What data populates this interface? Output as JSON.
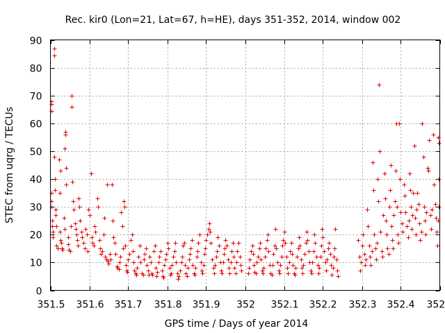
{
  "chart_data": {
    "type": "scatter",
    "title": "Rec. kir0 (Lon=21, Lat=67, h=HE), days 351-352, 2014, window 002",
    "xlabel": "GPS time / Days of year 2014",
    "ylabel": "STEC from uqrg / TECUs",
    "xlim": [
      351.5,
      352.5
    ],
    "ylim": [
      0,
      90
    ],
    "grid": true,
    "x_ticks": [
      "351.5",
      "351.6",
      "351.7",
      "351.8",
      "351.9",
      "352",
      "352.1",
      "352.2",
      "352.3",
      "352.4",
      "352.5"
    ],
    "y_ticks": [
      "0",
      "10",
      "20",
      "30",
      "40",
      "50",
      "60",
      "70",
      "80",
      "90"
    ],
    "marker": "plus",
    "color": "#e00000",
    "points": [
      [
        351.502,
        68
      ],
      [
        351.502,
        67
      ],
      [
        351.503,
        64.5
      ],
      [
        351.503,
        35
      ],
      [
        351.502,
        32
      ],
      [
        351.502,
        30
      ],
      [
        351.504,
        25
      ],
      [
        351.505,
        23
      ],
      [
        351.506,
        21
      ],
      [
        351.506,
        19
      ],
      [
        351.51,
        87
      ],
      [
        351.51,
        84.5
      ],
      [
        351.51,
        48
      ],
      [
        351.512,
        40
      ],
      [
        351.512,
        36
      ],
      [
        351.513,
        29
      ],
      [
        351.514,
        27
      ],
      [
        351.516,
        23
      ],
      [
        351.516,
        16
      ],
      [
        351.518,
        15
      ],
      [
        351.522,
        47
      ],
      [
        351.526,
        43
      ],
      [
        351.525,
        35
      ],
      [
        351.524,
        21
      ],
      [
        351.526,
        18
      ],
      [
        351.528,
        17
      ],
      [
        351.53,
        15
      ],
      [
        351.531,
        14.5
      ],
      [
        351.534,
        26
      ],
      [
        351.536,
        22
      ],
      [
        351.538,
        57
      ],
      [
        351.538,
        56
      ],
      [
        351.536,
        51
      ],
      [
        351.54,
        44
      ],
      [
        351.541,
        38
      ],
      [
        351.545,
        19
      ],
      [
        351.546,
        16.5
      ],
      [
        351.548,
        14.5
      ],
      [
        351.55,
        14
      ],
      [
        351.552,
        23
      ],
      [
        351.555,
        70
      ],
      [
        351.555,
        66
      ],
      [
        351.556,
        39
      ],
      [
        351.558,
        32
      ],
      [
        351.56,
        29
      ],
      [
        351.563,
        24
      ],
      [
        351.565,
        22
      ],
      [
        351.567,
        20
      ],
      [
        351.568,
        18
      ],
      [
        351.57,
        16
      ],
      [
        351.572,
        33
      ],
      [
        351.574,
        30
      ],
      [
        351.576,
        25
      ],
      [
        351.579,
        21
      ],
      [
        351.582,
        19
      ],
      [
        351.585,
        17
      ],
      [
        351.588,
        15
      ],
      [
        351.59,
        22
      ],
      [
        351.593,
        20
      ],
      [
        351.596,
        14
      ],
      [
        351.598,
        29
      ],
      [
        351.6,
        27
      ],
      [
        351.604,
        42
      ],
      [
        351.606,
        19
      ],
      [
        351.608,
        17
      ],
      [
        351.612,
        16
      ],
      [
        351.614,
        23
      ],
      [
        351.616,
        21
      ],
      [
        351.62,
        33
      ],
      [
        351.623,
        30
      ],
      [
        351.625,
        18
      ],
      [
        351.627,
        15
      ],
      [
        351.63,
        13
      ],
      [
        351.633,
        14
      ],
      [
        351.636,
        20
      ],
      [
        351.638,
        26
      ],
      [
        351.64,
        12
      ],
      [
        351.643,
        11
      ],
      [
        351.645,
        38
      ],
      [
        351.648,
        10.5
      ],
      [
        351.65,
        9.5
      ],
      [
        351.653,
        13
      ],
      [
        351.655,
        11
      ],
      [
        351.658,
        38
      ],
      [
        351.66,
        25
      ],
      [
        351.662,
        19
      ],
      [
        351.665,
        17
      ],
      [
        351.667,
        13
      ],
      [
        351.67,
        8.5
      ],
      [
        351.672,
        8
      ],
      [
        351.675,
        7.5
      ],
      [
        351.677,
        10
      ],
      [
        351.68,
        12
      ],
      [
        351.682,
        28
      ],
      [
        351.684,
        23
      ],
      [
        351.686,
        15
      ],
      [
        351.688,
        32
      ],
      [
        351.69,
        30
      ],
      [
        351.692,
        16
      ],
      [
        351.694,
        9
      ],
      [
        351.696,
        7
      ],
      [
        351.698,
        6.5
      ],
      [
        351.7,
        11
      ],
      [
        351.703,
        13
      ],
      [
        351.706,
        18
      ],
      [
        351.709,
        20
      ],
      [
        351.712,
        14
      ],
      [
        351.714,
        10
      ],
      [
        351.716,
        7
      ],
      [
        351.718,
        6
      ],
      [
        351.72,
        5.5
      ],
      [
        351.723,
        8
      ],
      [
        351.726,
        12
      ],
      [
        351.729,
        16
      ],
      [
        351.732,
        10
      ],
      [
        351.735,
        6
      ],
      [
        351.738,
        5.5
      ],
      [
        351.74,
        11
      ],
      [
        351.742,
        13
      ],
      [
        351.745,
        15
      ],
      [
        351.748,
        9
      ],
      [
        351.75,
        7
      ],
      [
        351.752,
        5.5
      ],
      [
        351.755,
        12
      ],
      [
        351.758,
        10
      ],
      [
        351.76,
        6
      ],
      [
        351.762,
        5.5
      ],
      [
        351.765,
        14
      ],
      [
        351.768,
        16
      ],
      [
        351.77,
        8
      ],
      [
        351.772,
        5
      ],
      [
        351.775,
        6.5
      ],
      [
        351.778,
        10
      ],
      [
        351.78,
        12
      ],
      [
        351.783,
        14
      ],
      [
        351.786,
        7
      ],
      [
        351.788,
        5
      ],
      [
        351.79,
        4.5
      ],
      [
        351.792,
        9
      ],
      [
        351.795,
        11
      ],
      [
        351.798,
        13
      ],
      [
        351.8,
        17
      ],
      [
        351.803,
        15
      ],
      [
        351.806,
        8
      ],
      [
        351.808,
        5.5
      ],
      [
        351.81,
        6
      ],
      [
        351.812,
        9
      ],
      [
        351.815,
        12
      ],
      [
        351.818,
        14
      ],
      [
        351.82,
        17
      ],
      [
        351.823,
        10
      ],
      [
        351.826,
        6
      ],
      [
        351.828,
        4
      ],
      [
        351.83,
        5
      ],
      [
        351.833,
        7
      ],
      [
        351.836,
        10
      ],
      [
        351.838,
        12
      ],
      [
        351.84,
        16
      ],
      [
        351.843,
        17
      ],
      [
        351.846,
        9
      ],
      [
        351.848,
        6
      ],
      [
        351.85,
        5
      ],
      [
        351.853,
        8
      ],
      [
        351.856,
        11
      ],
      [
        351.858,
        13
      ],
      [
        351.86,
        15
      ],
      [
        351.863,
        18
      ],
      [
        351.866,
        9
      ],
      [
        351.868,
        6
      ],
      [
        351.87,
        5.5
      ],
      [
        351.873,
        8
      ],
      [
        351.876,
        12
      ],
      [
        351.878,
        14
      ],
      [
        351.88,
        17
      ],
      [
        351.883,
        20
      ],
      [
        351.886,
        10
      ],
      [
        351.888,
        7
      ],
      [
        351.89,
        6
      ],
      [
        351.893,
        9
      ],
      [
        351.896,
        13
      ],
      [
        351.898,
        15
      ],
      [
        351.9,
        18
      ],
      [
        351.903,
        20
      ],
      [
        351.906,
        22
      ],
      [
        351.908,
        24
      ],
      [
        351.91,
        21
      ],
      [
        351.912,
        17
      ],
      [
        351.915,
        11
      ],
      [
        351.918,
        8
      ],
      [
        351.92,
        6
      ],
      [
        351.923,
        9
      ],
      [
        351.926,
        12
      ],
      [
        351.928,
        14
      ],
      [
        351.93,
        19
      ],
      [
        351.933,
        16
      ],
      [
        351.936,
        10
      ],
      [
        351.938,
        7
      ],
      [
        351.94,
        6
      ],
      [
        351.943,
        10
      ],
      [
        351.946,
        13
      ],
      [
        351.948,
        15
      ],
      [
        351.95,
        18
      ],
      [
        351.953,
        16
      ],
      [
        351.956,
        11
      ],
      [
        351.958,
        8
      ],
      [
        351.96,
        6
      ],
      [
        351.963,
        10
      ],
      [
        351.966,
        14
      ],
      [
        351.968,
        17
      ],
      [
        351.97,
        12
      ],
      [
        351.973,
        8
      ],
      [
        351.976,
        6
      ],
      [
        351.978,
        10
      ],
      [
        351.98,
        14
      ],
      [
        351.983,
        17
      ],
      [
        351.986,
        12
      ],
      [
        351.988,
        9
      ],
      [
        351.99,
        7
      ],
      [
        352.008,
        6
      ],
      [
        352.01,
        8
      ],
      [
        352.012,
        11
      ],
      [
        352.015,
        14
      ],
      [
        352.018,
        16
      ],
      [
        352.02,
        13
      ],
      [
        352.022,
        9
      ],
      [
        352.025,
        6.5
      ],
      [
        352.028,
        6
      ],
      [
        352.03,
        10
      ],
      [
        352.033,
        12
      ],
      [
        352.036,
        15
      ],
      [
        352.038,
        17
      ],
      [
        352.04,
        11
      ],
      [
        352.043,
        7
      ],
      [
        352.046,
        6
      ],
      [
        352.048,
        8
      ],
      [
        352.05,
        12
      ],
      [
        352.053,
        15
      ],
      [
        352.056,
        18
      ],
      [
        352.058,
        20
      ],
      [
        352.06,
        14
      ],
      [
        352.063,
        9
      ],
      [
        352.066,
        6
      ],
      [
        352.068,
        5.5
      ],
      [
        352.07,
        9
      ],
      [
        352.073,
        13
      ],
      [
        352.076,
        16
      ],
      [
        352.078,
        22
      ],
      [
        352.08,
        15
      ],
      [
        352.083,
        10
      ],
      [
        352.086,
        7
      ],
      [
        352.088,
        6
      ],
      [
        352.09,
        9
      ],
      [
        352.093,
        12
      ],
      [
        352.096,
        16
      ],
      [
        352.098,
        18
      ],
      [
        352.1,
        21
      ],
      [
        352.103,
        17
      ],
      [
        352.106,
        12
      ],
      [
        352.108,
        8
      ],
      [
        352.11,
        6
      ],
      [
        352.113,
        10
      ],
      [
        352.116,
        14
      ],
      [
        352.118,
        17
      ],
      [
        352.12,
        13
      ],
      [
        352.123,
        9
      ],
      [
        352.126,
        6
      ],
      [
        352.128,
        5.5
      ],
      [
        352.13,
        8
      ],
      [
        352.133,
        12
      ],
      [
        352.136,
        15
      ],
      [
        352.138,
        19
      ],
      [
        352.14,
        16
      ],
      [
        352.143,
        11
      ],
      [
        352.146,
        8
      ],
      [
        352.148,
        6
      ],
      [
        352.15,
        9
      ],
      [
        352.153,
        13
      ],
      [
        352.156,
        17
      ],
      [
        352.158,
        21
      ],
      [
        352.16,
        18
      ],
      [
        352.163,
        14
      ],
      [
        352.166,
        10
      ],
      [
        352.168,
        7
      ],
      [
        352.17,
        6
      ],
      [
        352.173,
        10
      ],
      [
        352.176,
        14
      ],
      [
        352.178,
        20
      ],
      [
        352.18,
        17
      ],
      [
        352.183,
        12
      ],
      [
        352.186,
        9
      ],
      [
        352.188,
        6
      ],
      [
        352.19,
        8
      ],
      [
        352.193,
        12
      ],
      [
        352.196,
        16
      ],
      [
        352.198,
        22
      ],
      [
        352.2,
        19
      ],
      [
        352.203,
        14
      ],
      [
        352.206,
        10
      ],
      [
        352.208,
        7
      ],
      [
        352.21,
        11
      ],
      [
        352.213,
        15
      ],
      [
        352.216,
        17
      ],
      [
        352.218,
        13
      ],
      [
        352.22,
        9
      ],
      [
        352.222,
        5.5
      ],
      [
        352.225,
        8
      ],
      [
        352.228,
        12
      ],
      [
        352.23,
        15
      ],
      [
        352.232,
        22
      ],
      [
        352.234,
        11
      ],
      [
        352.236,
        7
      ],
      [
        352.238,
        5
      ],
      [
        352.29,
        18
      ],
      [
        352.293,
        12
      ],
      [
        352.296,
        7
      ],
      [
        352.298,
        10
      ],
      [
        352.3,
        16
      ],
      [
        352.303,
        20
      ],
      [
        352.306,
        13
      ],
      [
        352.308,
        9
      ],
      [
        352.31,
        11
      ],
      [
        352.313,
        29
      ],
      [
        352.316,
        23
      ],
      [
        352.318,
        16
      ],
      [
        352.32,
        12
      ],
      [
        352.323,
        9
      ],
      [
        352.326,
        14
      ],
      [
        352.328,
        46
      ],
      [
        352.33,
        36
      ],
      [
        352.332,
        20
      ],
      [
        352.334,
        15
      ],
      [
        352.336,
        11
      ],
      [
        352.338,
        17
      ],
      [
        352.34,
        40
      ],
      [
        352.342,
        32
      ],
      [
        352.344,
        74
      ],
      [
        352.346,
        50
      ],
      [
        352.348,
        21
      ],
      [
        352.35,
        14
      ],
      [
        352.352,
        12
      ],
      [
        352.355,
        27
      ],
      [
        352.358,
        42
      ],
      [
        352.36,
        33
      ],
      [
        352.362,
        25
      ],
      [
        352.364,
        20
      ],
      [
        352.366,
        15
      ],
      [
        352.368,
        13
      ],
      [
        352.37,
        30
      ],
      [
        352.372,
        36
      ],
      [
        352.374,
        45
      ],
      [
        352.376,
        23
      ],
      [
        352.378,
        18
      ],
      [
        352.38,
        15
      ],
      [
        352.382,
        27
      ],
      [
        352.384,
        32
      ],
      [
        352.386,
        43
      ],
      [
        352.388,
        60
      ],
      [
        352.39,
        30
      ],
      [
        352.392,
        20
      ],
      [
        352.394,
        17
      ],
      [
        352.396,
        60
      ],
      [
        352.398,
        40
      ],
      [
        352.4,
        28
      ],
      [
        352.402,
        24
      ],
      [
        352.405,
        21
      ],
      [
        352.408,
        38
      ],
      [
        352.41,
        34
      ],
      [
        352.412,
        28
      ],
      [
        352.415,
        23
      ],
      [
        352.418,
        19
      ],
      [
        352.42,
        25
      ],
      [
        352.422,
        42
      ],
      [
        352.424,
        36
      ],
      [
        352.426,
        30
      ],
      [
        352.428,
        22
      ],
      [
        352.43,
        27
      ],
      [
        352.432,
        35
      ],
      [
        352.434,
        52
      ],
      [
        352.436,
        26
      ],
      [
        352.438,
        20
      ],
      [
        352.44,
        29
      ],
      [
        352.442,
        35
      ],
      [
        352.445,
        31
      ],
      [
        352.448,
        24
      ],
      [
        352.45,
        18
      ],
      [
        352.452,
        21
      ],
      [
        352.455,
        60
      ],
      [
        352.458,
        48
      ],
      [
        352.46,
        30
      ],
      [
        352.462,
        25
      ],
      [
        352.464,
        20
      ],
      [
        352.466,
        28
      ],
      [
        352.468,
        44
      ],
      [
        352.47,
        43
      ],
      [
        352.472,
        54
      ],
      [
        352.475,
        27
      ],
      [
        352.478,
        22
      ],
      [
        352.48,
        29
      ],
      [
        352.483,
        56
      ],
      [
        352.485,
        38
      ],
      [
        352.488,
        31
      ],
      [
        352.49,
        26
      ],
      [
        352.492,
        21
      ],
      [
        352.494,
        16
      ],
      [
        352.496,
        55
      ],
      [
        352.498,
        53
      ],
      [
        352.498,
        40
      ],
      [
        352.497,
        30
      ],
      [
        352.495,
        25
      ]
    ]
  }
}
